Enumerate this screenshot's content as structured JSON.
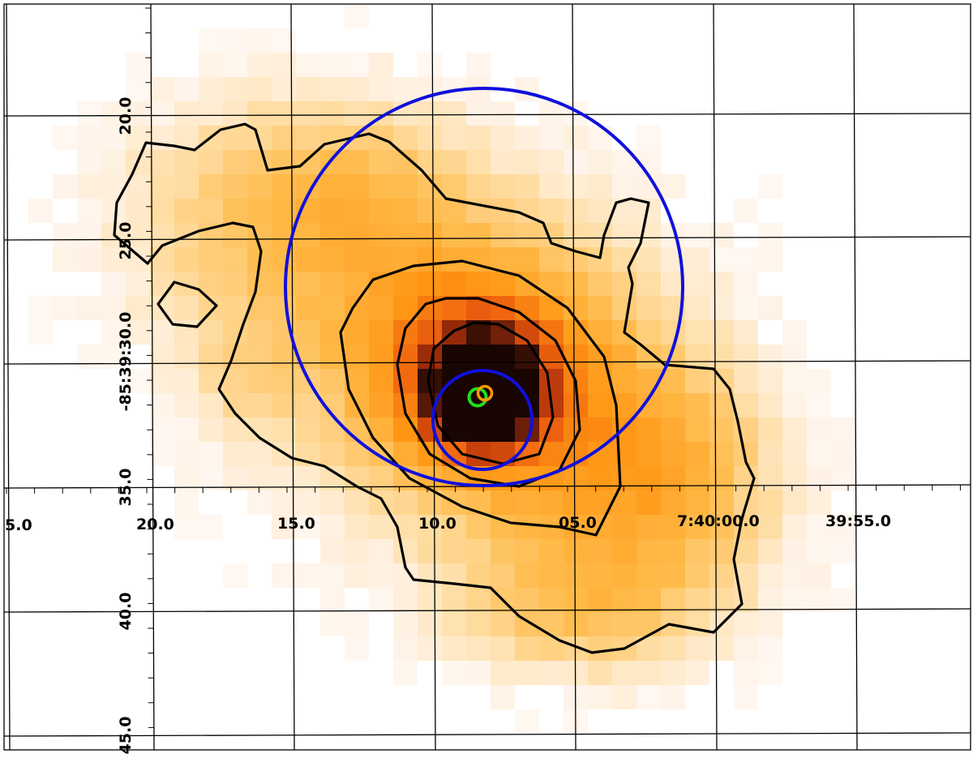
{
  "image": {
    "ra_labels": [
      "5.0",
      "20.0",
      "15.0",
      "10.0",
      "05.0",
      "7:40:00.0",
      "39:55.0"
    ],
    "dec_labels": [
      "20.0",
      "25.0",
      "-85:39:30.0",
      "35.0",
      "40.0",
      "45.0"
    ],
    "colors": {
      "grid": "#000000",
      "contour": "#000000",
      "large_circle": "#1010dd",
      "small_circle": "#1010dd",
      "green_marker": "#22dd22",
      "orange_marker": "#ff9900",
      "colormap": "heat (white to orange to black)"
    },
    "features": [
      "heatmap-emission",
      "contours",
      "large-blue-circle",
      "small-blue-circle",
      "green-marker",
      "orange-marker",
      "coordinate-grid"
    ]
  }
}
